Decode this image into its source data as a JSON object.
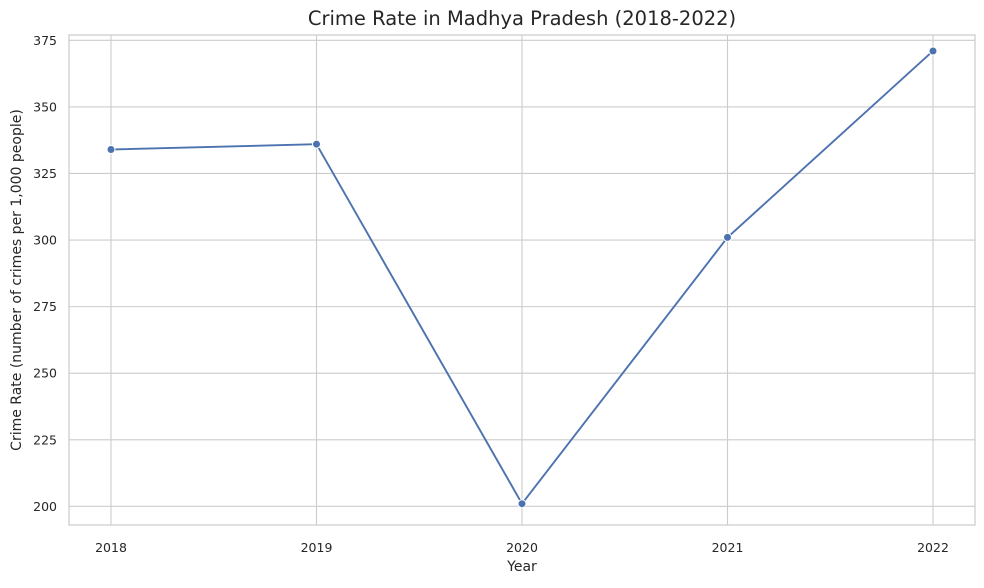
{
  "chart_data": {
    "type": "line",
    "title": "Crime Rate in Madhya Pradesh (2018-2022)",
    "xlabel": "Year",
    "ylabel": "Crime Rate (number of crimes per 1,000 people)",
    "x": [
      "2018",
      "2019",
      "2020",
      "2021",
      "2022"
    ],
    "series": [
      {
        "values": [
          334,
          336,
          201,
          301,
          371
        ]
      }
    ],
    "ylim": [
      193,
      377
    ],
    "yticks": [
      200,
      225,
      250,
      275,
      300,
      325,
      350,
      375
    ],
    "grid": true,
    "legend": "none",
    "colors": {
      "line": "#4c72b0",
      "grid": "#cccccc",
      "frame": "#cccccc",
      "background": "#ffffff"
    }
  }
}
